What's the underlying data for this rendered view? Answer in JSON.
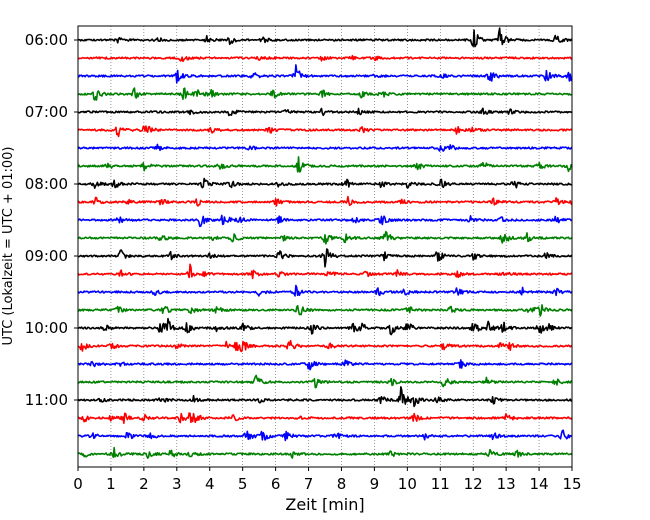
{
  "chart_data": {
    "type": "line",
    "title": "",
    "xlabel": "Zeit  [min]",
    "ylabel": "UTC (Lokalzeit = UTC + 01:00)",
    "xlim": [
      0,
      15
    ],
    "x_ticks": [
      "0",
      "1",
      "2",
      "3",
      "4",
      "5",
      "6",
      "7",
      "8",
      "9",
      "10",
      "11",
      "12",
      "13",
      "14",
      "15"
    ],
    "y_ticks": [
      "06:00",
      "07:00",
      "08:00",
      "09:00",
      "10:00",
      "11:00"
    ],
    "minutes_per_trace": 15,
    "grid": "vertical dotted",
    "colors": [
      "#000000",
      "#ff0000",
      "#0000ff",
      "#008000"
    ],
    "series": [
      {
        "name": "06:00",
        "color": "#000000",
        "events": [
          [
            1.2,
            0.25
          ],
          [
            2.4,
            0.2
          ],
          [
            3.9,
            0.3
          ],
          [
            4.6,
            0.35
          ],
          [
            5.6,
            0.25
          ],
          [
            12.0,
            1.0
          ],
          [
            12.8,
            0.95
          ],
          [
            14.5,
            0.5
          ]
        ]
      },
      {
        "name": "06:15",
        "color": "#ff0000",
        "events": [
          [
            3.1,
            0.45
          ],
          [
            5.5,
            0.2
          ],
          [
            7.4,
            0.2
          ],
          [
            8.3,
            0.15
          ],
          [
            9.0,
            0.15
          ]
        ]
      },
      {
        "name": "06:30",
        "color": "#0000ff",
        "events": [
          [
            3.0,
            0.5
          ],
          [
            5.3,
            0.45
          ],
          [
            6.6,
            0.9
          ],
          [
            8.9,
            0.35
          ],
          [
            11.0,
            0.3
          ],
          [
            12.5,
            0.6
          ],
          [
            14.2,
            0.55
          ],
          [
            14.9,
            0.6
          ]
        ]
      },
      {
        "name": "06:45",
        "color": "#008000",
        "events": [
          [
            0.5,
            0.7
          ],
          [
            1.7,
            0.45
          ],
          [
            3.2,
            0.55
          ],
          [
            3.6,
            0.5
          ],
          [
            4.0,
            0.6
          ],
          [
            5.9,
            0.4
          ],
          [
            7.4,
            0.35
          ],
          [
            8.6,
            0.3
          ],
          [
            9.2,
            0.35
          ]
        ]
      },
      {
        "name": "07:00",
        "color": "#000000",
        "events": [
          [
            3.4,
            0.25
          ],
          [
            4.6,
            0.35
          ],
          [
            6.3,
            0.2
          ],
          [
            7.4,
            0.3
          ],
          [
            8.5,
            0.25
          ],
          [
            12.3,
            0.25
          ],
          [
            13.1,
            0.2
          ]
        ]
      },
      {
        "name": "07:15",
        "color": "#ff0000",
        "events": [
          [
            1.2,
            0.55
          ],
          [
            2.0,
            0.3
          ],
          [
            2.1,
            0.3
          ],
          [
            4.0,
            0.3
          ],
          [
            5.8,
            0.3
          ],
          [
            8.6,
            0.25
          ],
          [
            11.5,
            0.35
          ],
          [
            12.0,
            0.3
          ]
        ]
      },
      {
        "name": "07:30",
        "color": "#0000ff",
        "events": [
          [
            2.4,
            0.25
          ],
          [
            5.2,
            0.2
          ],
          [
            11.0,
            0.4
          ],
          [
            11.3,
            0.3
          ]
        ]
      },
      {
        "name": "07:45",
        "color": "#008000",
        "events": [
          [
            0.9,
            0.3
          ],
          [
            2.0,
            0.35
          ],
          [
            4.3,
            0.3
          ],
          [
            6.7,
            0.8
          ],
          [
            10.3,
            0.35
          ],
          [
            12.3,
            0.45
          ],
          [
            14.0,
            0.35
          ],
          [
            14.9,
            0.5
          ]
        ]
      },
      {
        "name": "08:00",
        "color": "#000000",
        "events": [
          [
            0.5,
            0.35
          ],
          [
            1.1,
            0.55
          ],
          [
            3.8,
            0.55
          ],
          [
            4.6,
            0.35
          ],
          [
            6.1,
            0.3
          ],
          [
            8.1,
            0.5
          ],
          [
            9.2,
            0.3
          ],
          [
            10.0,
            0.3
          ],
          [
            11.0,
            0.45
          ],
          [
            13.2,
            0.55
          ]
        ]
      },
      {
        "name": "08:15",
        "color": "#ff0000",
        "events": [
          [
            0.5,
            0.45
          ],
          [
            1.5,
            0.3
          ],
          [
            2.5,
            0.3
          ],
          [
            3.6,
            0.35
          ],
          [
            6.0,
            0.3
          ],
          [
            8.2,
            0.4
          ],
          [
            9.8,
            0.3
          ],
          [
            12.6,
            0.3
          ],
          [
            14.5,
            0.35
          ],
          [
            15.0,
            0.3
          ]
        ]
      },
      {
        "name": "08:30",
        "color": "#0000ff",
        "events": [
          [
            1.2,
            0.35
          ],
          [
            3.7,
            0.6
          ],
          [
            4.4,
            0.75
          ],
          [
            4.9,
            0.35
          ],
          [
            6.1,
            0.3
          ],
          [
            8.4,
            0.3
          ],
          [
            9.2,
            0.5
          ],
          [
            11.9,
            0.3
          ],
          [
            12.8,
            0.3
          ],
          [
            14.5,
            0.3
          ]
        ]
      },
      {
        "name": "08:45",
        "color": "#008000",
        "events": [
          [
            2.5,
            0.4
          ],
          [
            4.0,
            0.35
          ],
          [
            4.7,
            0.35
          ],
          [
            6.2,
            0.3
          ],
          [
            7.5,
            0.5
          ],
          [
            8.1,
            0.5
          ],
          [
            9.3,
            1.0
          ],
          [
            12.9,
            0.6
          ],
          [
            13.6,
            0.45
          ]
        ]
      },
      {
        "name": "09:00",
        "color": "#000000",
        "events": [
          [
            1.3,
            0.55
          ],
          [
            2.8,
            0.3
          ],
          [
            4.0,
            0.3
          ],
          [
            6.1,
            0.45
          ],
          [
            7.5,
            0.85
          ],
          [
            9.3,
            0.35
          ],
          [
            10.9,
            0.55
          ],
          [
            12.0,
            0.35
          ],
          [
            14.2,
            0.3
          ]
        ]
      },
      {
        "name": "09:15",
        "color": "#ff0000",
        "events": [
          [
            1.3,
            0.3
          ],
          [
            3.4,
            0.7
          ],
          [
            3.7,
            0.3
          ],
          [
            5.3,
            0.3
          ],
          [
            6.1,
            0.3
          ],
          [
            7.6,
            0.3
          ],
          [
            8.7,
            0.3
          ],
          [
            9.7,
            0.3
          ],
          [
            11.5,
            0.3
          ],
          [
            12.9,
            0.3
          ]
        ]
      },
      {
        "name": "09:30",
        "color": "#0000ff",
        "events": [
          [
            2.3,
            0.3
          ],
          [
            5.5,
            0.3
          ],
          [
            6.6,
            0.5
          ],
          [
            9.1,
            0.35
          ],
          [
            9.9,
            0.3
          ],
          [
            11.5,
            0.3
          ],
          [
            13.5,
            0.35
          ],
          [
            14.5,
            0.3
          ]
        ]
      },
      {
        "name": "09:45",
        "color": "#008000",
        "events": [
          [
            1.2,
            0.35
          ],
          [
            2.6,
            0.4
          ],
          [
            3.4,
            0.35
          ],
          [
            4.2,
            0.35
          ],
          [
            6.7,
            0.75
          ],
          [
            10.0,
            0.35
          ],
          [
            11.3,
            0.3
          ],
          [
            13.7,
            0.5
          ],
          [
            14.0,
            0.65
          ]
        ]
      },
      {
        "name": "10:00",
        "color": "#000000",
        "events": [
          [
            0.8,
            0.3
          ],
          [
            2.5,
            0.6
          ],
          [
            2.7,
            0.8
          ],
          [
            3.3,
            0.45
          ],
          [
            4.2,
            0.3
          ],
          [
            5.0,
            0.35
          ],
          [
            7.1,
            0.45
          ],
          [
            8.3,
            0.55
          ],
          [
            8.6,
            0.45
          ],
          [
            9.5,
            0.6
          ],
          [
            10.0,
            0.6
          ],
          [
            12.0,
            0.6
          ],
          [
            12.4,
            0.7
          ],
          [
            12.9,
            0.5
          ],
          [
            14.0,
            0.65
          ],
          [
            14.2,
            0.5
          ]
        ]
      },
      {
        "name": "10:15",
        "color": "#ff0000",
        "events": [
          [
            0.1,
            0.5
          ],
          [
            1.0,
            0.3
          ],
          [
            3.0,
            0.3
          ],
          [
            4.5,
            0.35
          ],
          [
            4.8,
            0.65
          ],
          [
            5.0,
            0.5
          ],
          [
            6.4,
            0.6
          ],
          [
            7.6,
            0.3
          ],
          [
            11.1,
            0.55
          ],
          [
            12.8,
            0.3
          ],
          [
            13.1,
            0.3
          ]
        ]
      },
      {
        "name": "10:30",
        "color": "#0000ff",
        "events": [
          [
            0.4,
            0.3
          ],
          [
            1.3,
            0.2
          ],
          [
            7.0,
            0.55
          ],
          [
            8.1,
            0.3
          ],
          [
            11.6,
            0.4
          ]
        ]
      },
      {
        "name": "10:45",
        "color": "#008000",
        "events": [
          [
            5.4,
            0.55
          ],
          [
            7.2,
            0.45
          ],
          [
            9.5,
            0.3
          ],
          [
            11.1,
            0.55
          ],
          [
            12.4,
            0.3
          ],
          [
            14.5,
            0.3
          ]
        ]
      },
      {
        "name": "11:00",
        "color": "#000000",
        "events": [
          [
            0.7,
            0.2
          ],
          [
            2.5,
            0.3
          ],
          [
            3.5,
            0.3
          ],
          [
            5.5,
            0.3
          ],
          [
            9.2,
            0.4
          ],
          [
            9.8,
            1.0
          ],
          [
            10.2,
            0.55
          ],
          [
            10.9,
            0.35
          ],
          [
            12.6,
            0.3
          ]
        ]
      },
      {
        "name": "11:15",
        "color": "#ff0000",
        "events": [
          [
            0.2,
            0.3
          ],
          [
            1.0,
            0.3
          ],
          [
            1.4,
            0.45
          ],
          [
            2.0,
            0.35
          ],
          [
            3.1,
            0.35
          ],
          [
            3.4,
            0.6
          ],
          [
            3.6,
            0.35
          ],
          [
            4.7,
            0.3
          ],
          [
            6.6,
            0.3
          ],
          [
            10.2,
            0.35
          ],
          [
            13.0,
            0.35
          ]
        ]
      },
      {
        "name": "11:30",
        "color": "#0000ff",
        "events": [
          [
            0.4,
            0.3
          ],
          [
            1.5,
            0.35
          ],
          [
            2.2,
            0.3
          ],
          [
            5.1,
            0.55
          ],
          [
            5.6,
            0.6
          ],
          [
            6.3,
            0.4
          ],
          [
            7.8,
            0.35
          ],
          [
            10.5,
            0.3
          ],
          [
            12.6,
            0.3
          ],
          [
            14.7,
            0.5
          ]
        ]
      },
      {
        "name": "11:45",
        "color": "#008000",
        "events": [
          [
            0.2,
            0.3
          ],
          [
            1.1,
            0.45
          ],
          [
            2.1,
            0.35
          ],
          [
            2.8,
            0.35
          ],
          [
            3.4,
            0.3
          ],
          [
            6.5,
            0.3
          ],
          [
            9.5,
            0.3
          ],
          [
            12.5,
            0.35
          ],
          [
            13.3,
            0.4
          ]
        ]
      }
    ]
  }
}
